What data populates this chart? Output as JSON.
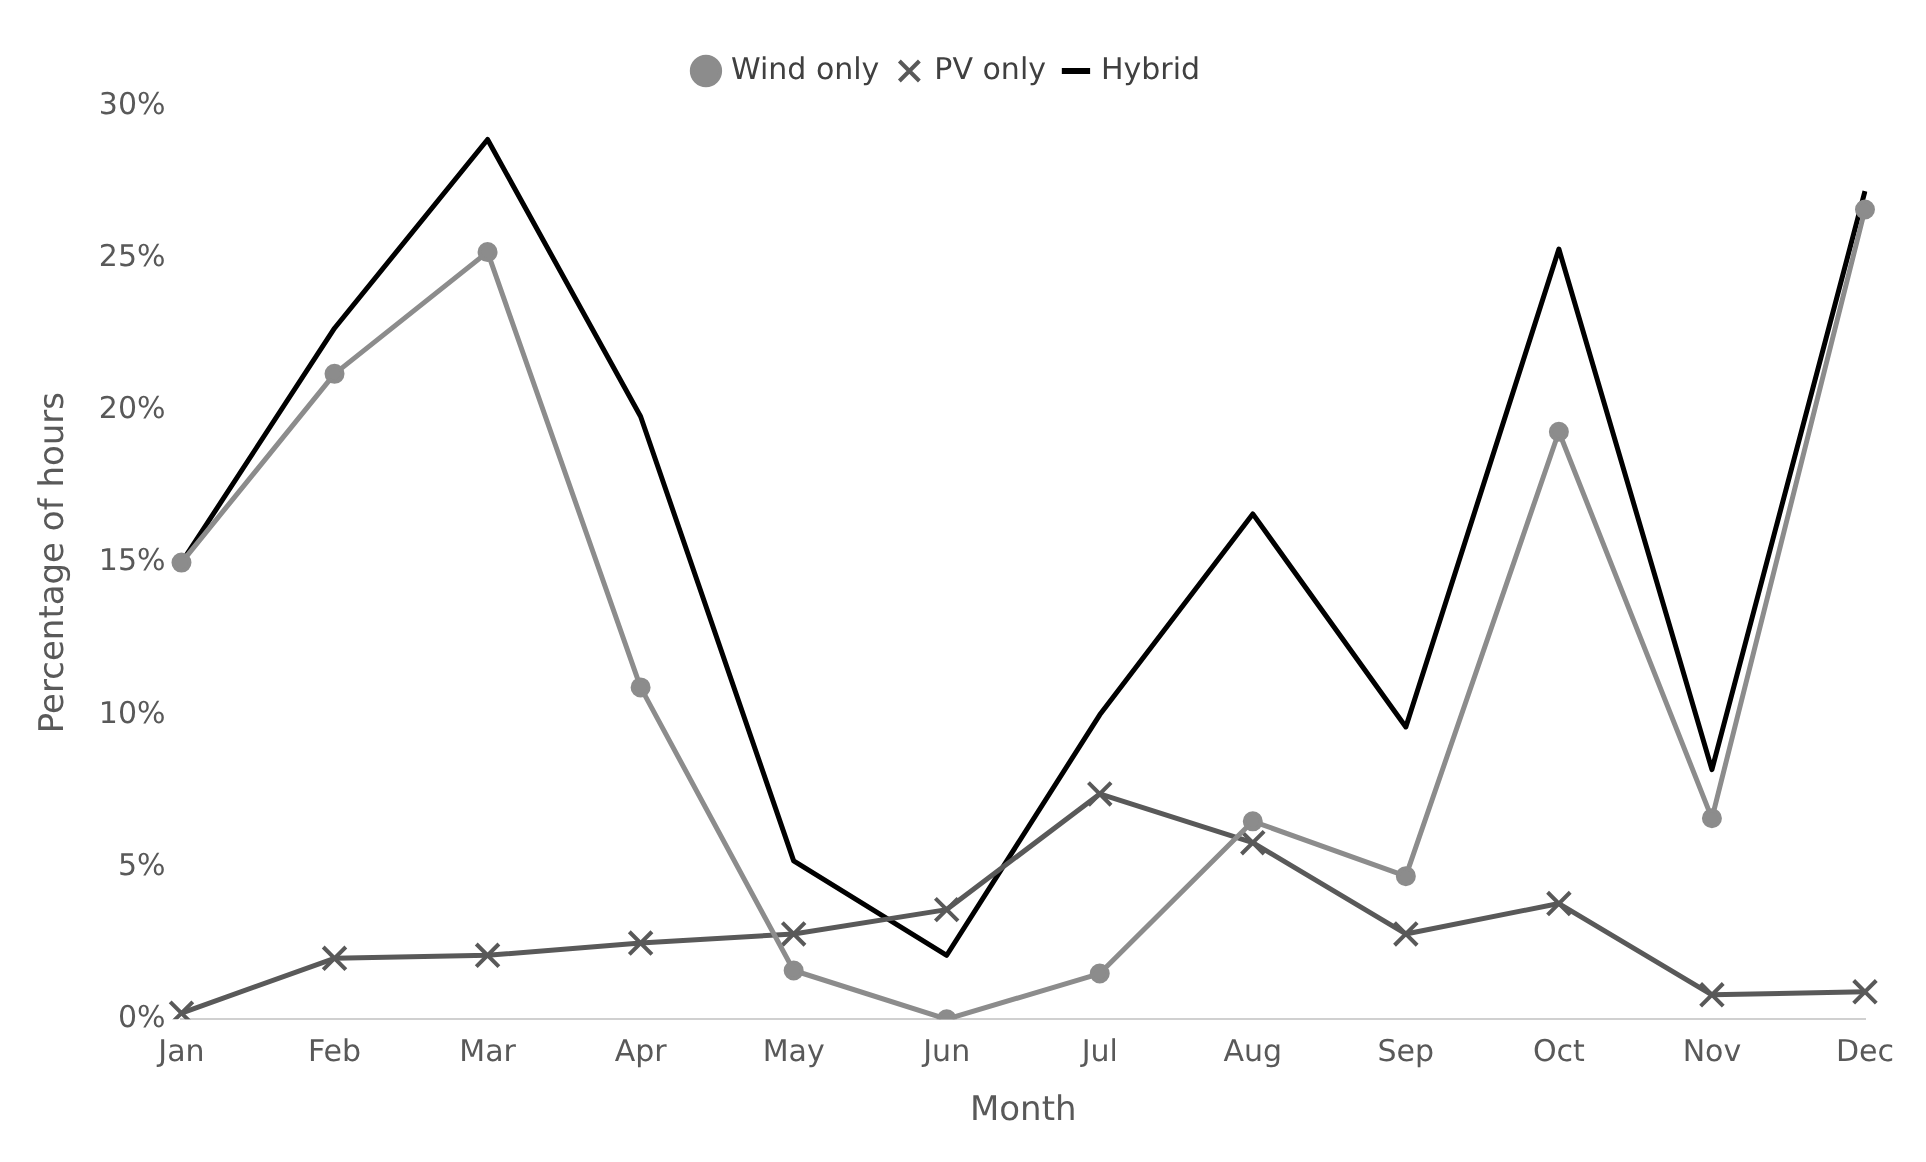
{
  "chart_data": {
    "type": "line",
    "xlabel": "Month",
    "ylabel": "Percentage of hours",
    "categories": [
      "Jan",
      "Feb",
      "Mar",
      "Apr",
      "May",
      "Jun",
      "Jul",
      "Aug",
      "Sep",
      "Oct",
      "Nov",
      "Dec"
    ],
    "series": [
      {
        "name": "Wind only",
        "color": "#8c8c8c",
        "marker": "circle",
        "values": [
          15.0,
          21.2,
          25.2,
          10.9,
          1.6,
          0,
          1.5,
          6.5,
          4.7,
          19.3,
          6.6,
          26.6
        ]
      },
      {
        "name": "PV only",
        "color": "#595959",
        "marker": "cross",
        "values": [
          0.2,
          2.0,
          2.1,
          2.5,
          2.8,
          3.6,
          7.4,
          5.8,
          2.8,
          3.8,
          0.8,
          0.9
        ]
      },
      {
        "name": "Hybrid",
        "color": "#000000",
        "marker": "none",
        "values": [
          15.0,
          22.7,
          28.9,
          19.8,
          5.2,
          2.1,
          10.0,
          16.6,
          9.6,
          25.3,
          8.2,
          27.2
        ]
      }
    ],
    "ylim": [
      0,
      30
    ],
    "yticks": [
      {
        "value": 0,
        "label": "0%"
      },
      {
        "value": 5,
        "label": "5%"
      },
      {
        "value": 10,
        "label": "10%"
      },
      {
        "value": 15,
        "label": "15%"
      },
      {
        "value": 20,
        "label": "20%"
      },
      {
        "value": 25,
        "label": "25%"
      },
      {
        "value": 30,
        "label": "30%"
      }
    ],
    "grid": false,
    "legend": "top"
  }
}
